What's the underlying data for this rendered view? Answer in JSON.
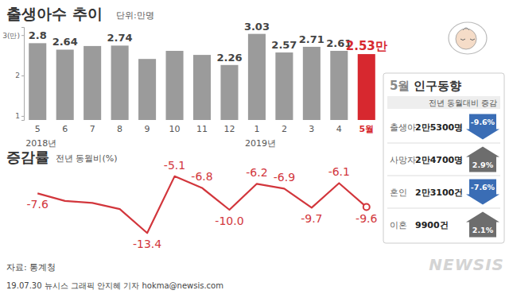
{
  "chart_data": [
    {
      "type": "bar",
      "title": "출생아수 추이",
      "subtitle": "단위:만명",
      "categories": [
        "5",
        "6",
        "7",
        "8",
        "9",
        "10",
        "11",
        "12",
        "1",
        "2",
        "3",
        "4",
        "5월"
      ],
      "annotations": [
        "2018년",
        "2019년"
      ],
      "values": [
        2.8,
        2.64,
        2.73,
        2.74,
        2.41,
        2.61,
        2.51,
        2.26,
        3.03,
        2.57,
        2.71,
        2.61,
        2.53
      ],
      "value_labels": [
        "2.8",
        "2.64",
        null,
        "2.74",
        null,
        null,
        null,
        "2.26",
        "3.03",
        "2.57",
        "2.71",
        "2.61",
        "2.53만"
      ],
      "colors": [
        "#9b9b9b",
        "#9b9b9b",
        "#9b9b9b",
        "#9b9b9b",
        "#9b9b9b",
        "#9b9b9b",
        "#9b9b9b",
        "#9b9b9b",
        "#9b9b9b",
        "#9b9b9b",
        "#9b9b9b",
        "#9b9b9b",
        "#d7282f"
      ],
      "ylim": [
        0.9,
        3.2
      ],
      "yticks": [
        {
          "value": 3,
          "label": "3(만)"
        },
        2,
        1
      ],
      "grid": false,
      "data_labels": true
    },
    {
      "type": "line",
      "title": "증감률",
      "subtitle": "전년 동월비(%)",
      "categories": [
        null,
        null,
        null,
        null,
        null,
        null,
        null,
        null,
        null,
        null,
        null,
        null,
        null
      ],
      "values": [
        -7.6,
        -8.7,
        -9.0,
        -9.9,
        -13.4,
        -5.1,
        -6.8,
        -10.0,
        -6.2,
        -6.9,
        -9.7,
        -6.1,
        -9.6
      ],
      "value_labels": [
        "-7.6",
        null,
        null,
        null,
        "-13.4",
        "-5.1",
        "-6.8",
        "-10.0",
        "-6.2",
        "-6.9",
        "-9.7",
        "-6.1",
        "-9.6"
      ],
      "color": "#d2363c",
      "ylim": [
        -15,
        0
      ],
      "tick_labels": false,
      "data_labels": true
    }
  ],
  "panel": {
    "month": "5월",
    "title": "인구동향",
    "header": "전년 동월대비 증감",
    "rows": [
      {
        "label": "출생아",
        "value": "2만5300명",
        "change": "-9.6%",
        "direction": "down"
      },
      {
        "label": "사망자",
        "value": "2만4700명",
        "change": "2.9%",
        "direction": "up"
      },
      {
        "label": "혼인",
        "value": "2만3100건",
        "change": "-7.6%",
        "direction": "down"
      },
      {
        "label": "이혼",
        "value": "9900건",
        "change": "2.1%",
        "direction": "up"
      }
    ]
  },
  "footer": {
    "source": "자료: 통계청",
    "credit": "19.07.30 뉴시스 그래픽 안지혜 기자 hokma@newsis.com",
    "logo": "NEWSIS"
  }
}
